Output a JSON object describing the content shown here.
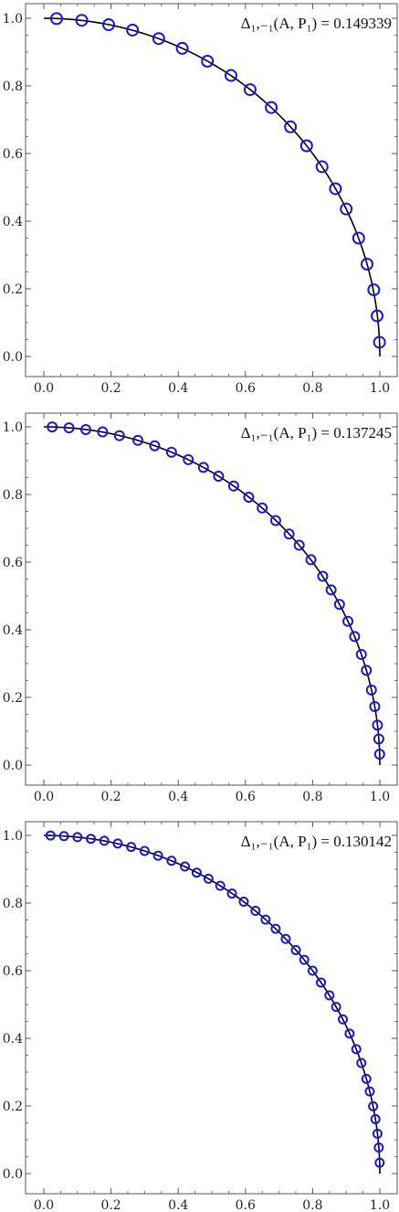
{
  "colors": {
    "curve": "#000000",
    "marker": "#1a1acc",
    "frame": "#555555",
    "background": "#ffffff"
  },
  "chart_data": [
    {
      "type": "scatter",
      "title": "",
      "xlabel": "",
      "ylabel": "",
      "xlim": [
        0,
        1
      ],
      "ylim": [
        0,
        1
      ],
      "grid": false,
      "x_ticks": [
        "0.0",
        "0.2",
        "0.4",
        "0.6",
        "0.8",
        "1.0"
      ],
      "y_ticks": [
        "0.0",
        "0.2",
        "0.4",
        "0.6",
        "0.8",
        "1.0"
      ],
      "annotation": "Δ₁,₋₁(A, P₁) = 0.149339",
      "curve": "quarter circle y = sqrt(1 - x^2)",
      "points_x": [
        0.038,
        0.113,
        0.193,
        0.264,
        0.342,
        0.412,
        0.487,
        0.557,
        0.614,
        0.677,
        0.734,
        0.782,
        0.828,
        0.868,
        0.9,
        0.937,
        0.962,
        0.982,
        0.992,
        0.999
      ],
      "points_y": [
        0.999,
        0.994,
        0.981,
        0.965,
        0.94,
        0.911,
        0.873,
        0.831,
        0.789,
        0.736,
        0.679,
        0.623,
        0.561,
        0.496,
        0.436,
        0.35,
        0.273,
        0.197,
        0.12,
        0.042
      ]
    },
    {
      "type": "scatter",
      "title": "",
      "xlabel": "",
      "ylabel": "",
      "xlim": [
        0,
        1
      ],
      "ylim": [
        0,
        1
      ],
      "grid": false,
      "x_ticks": [
        "0.0",
        "0.2",
        "0.4",
        "0.6",
        "0.8",
        "1.0"
      ],
      "y_ticks": [
        "0.0",
        "0.2",
        "0.4",
        "0.6",
        "0.8",
        "1.0"
      ],
      "annotation": "Δ₁,₋₁(A, P₁) = 0.137245",
      "curve": "quarter circle y = sqrt(1 - x^2)",
      "points_x": [
        0.025,
        0.075,
        0.125,
        0.175,
        0.225,
        0.28,
        0.33,
        0.38,
        0.43,
        0.475,
        0.52,
        0.565,
        0.61,
        0.65,
        0.69,
        0.73,
        0.76,
        0.795,
        0.83,
        0.855,
        0.88,
        0.905,
        0.925,
        0.945,
        0.96,
        0.975,
        0.985,
        0.993,
        0.997,
        0.9995
      ],
      "points_y": [
        0.9997,
        0.997,
        0.992,
        0.985,
        0.974,
        0.96,
        0.944,
        0.925,
        0.903,
        0.88,
        0.854,
        0.825,
        0.792,
        0.76,
        0.723,
        0.683,
        0.65,
        0.607,
        0.558,
        0.518,
        0.475,
        0.425,
        0.38,
        0.327,
        0.28,
        0.222,
        0.173,
        0.118,
        0.077,
        0.032
      ]
    },
    {
      "type": "scatter",
      "title": "",
      "xlabel": "",
      "ylabel": "",
      "xlim": [
        0,
        1
      ],
      "ylim": [
        0,
        1
      ],
      "grid": false,
      "x_ticks": [
        "0.0",
        "0.2",
        "0.4",
        "0.6",
        "0.8",
        "1.0"
      ],
      "y_ticks": [
        "0.0",
        "0.2",
        "0.4",
        "0.6",
        "0.8",
        "1.0"
      ],
      "annotation": "Δ₁,₋₁(A, P₁) = 0.130142",
      "curve": "quarter circle y = sqrt(1 - x^2)",
      "points_x": [
        0.02,
        0.06,
        0.1,
        0.14,
        0.18,
        0.22,
        0.26,
        0.3,
        0.34,
        0.38,
        0.42,
        0.455,
        0.49,
        0.525,
        0.56,
        0.595,
        0.63,
        0.66,
        0.69,
        0.72,
        0.75,
        0.775,
        0.8,
        0.825,
        0.85,
        0.87,
        0.89,
        0.91,
        0.93,
        0.945,
        0.96,
        0.97,
        0.98,
        0.987,
        0.993,
        0.997,
        0.9995
      ],
      "points_y": [
        0.9998,
        0.998,
        0.995,
        0.99,
        0.984,
        0.976,
        0.966,
        0.954,
        0.94,
        0.925,
        0.908,
        0.89,
        0.872,
        0.851,
        0.828,
        0.804,
        0.777,
        0.751,
        0.724,
        0.694,
        0.661,
        0.632,
        0.6,
        0.565,
        0.527,
        0.493,
        0.456,
        0.414,
        0.368,
        0.327,
        0.28,
        0.243,
        0.199,
        0.161,
        0.118,
        0.077,
        0.032
      ]
    }
  ]
}
